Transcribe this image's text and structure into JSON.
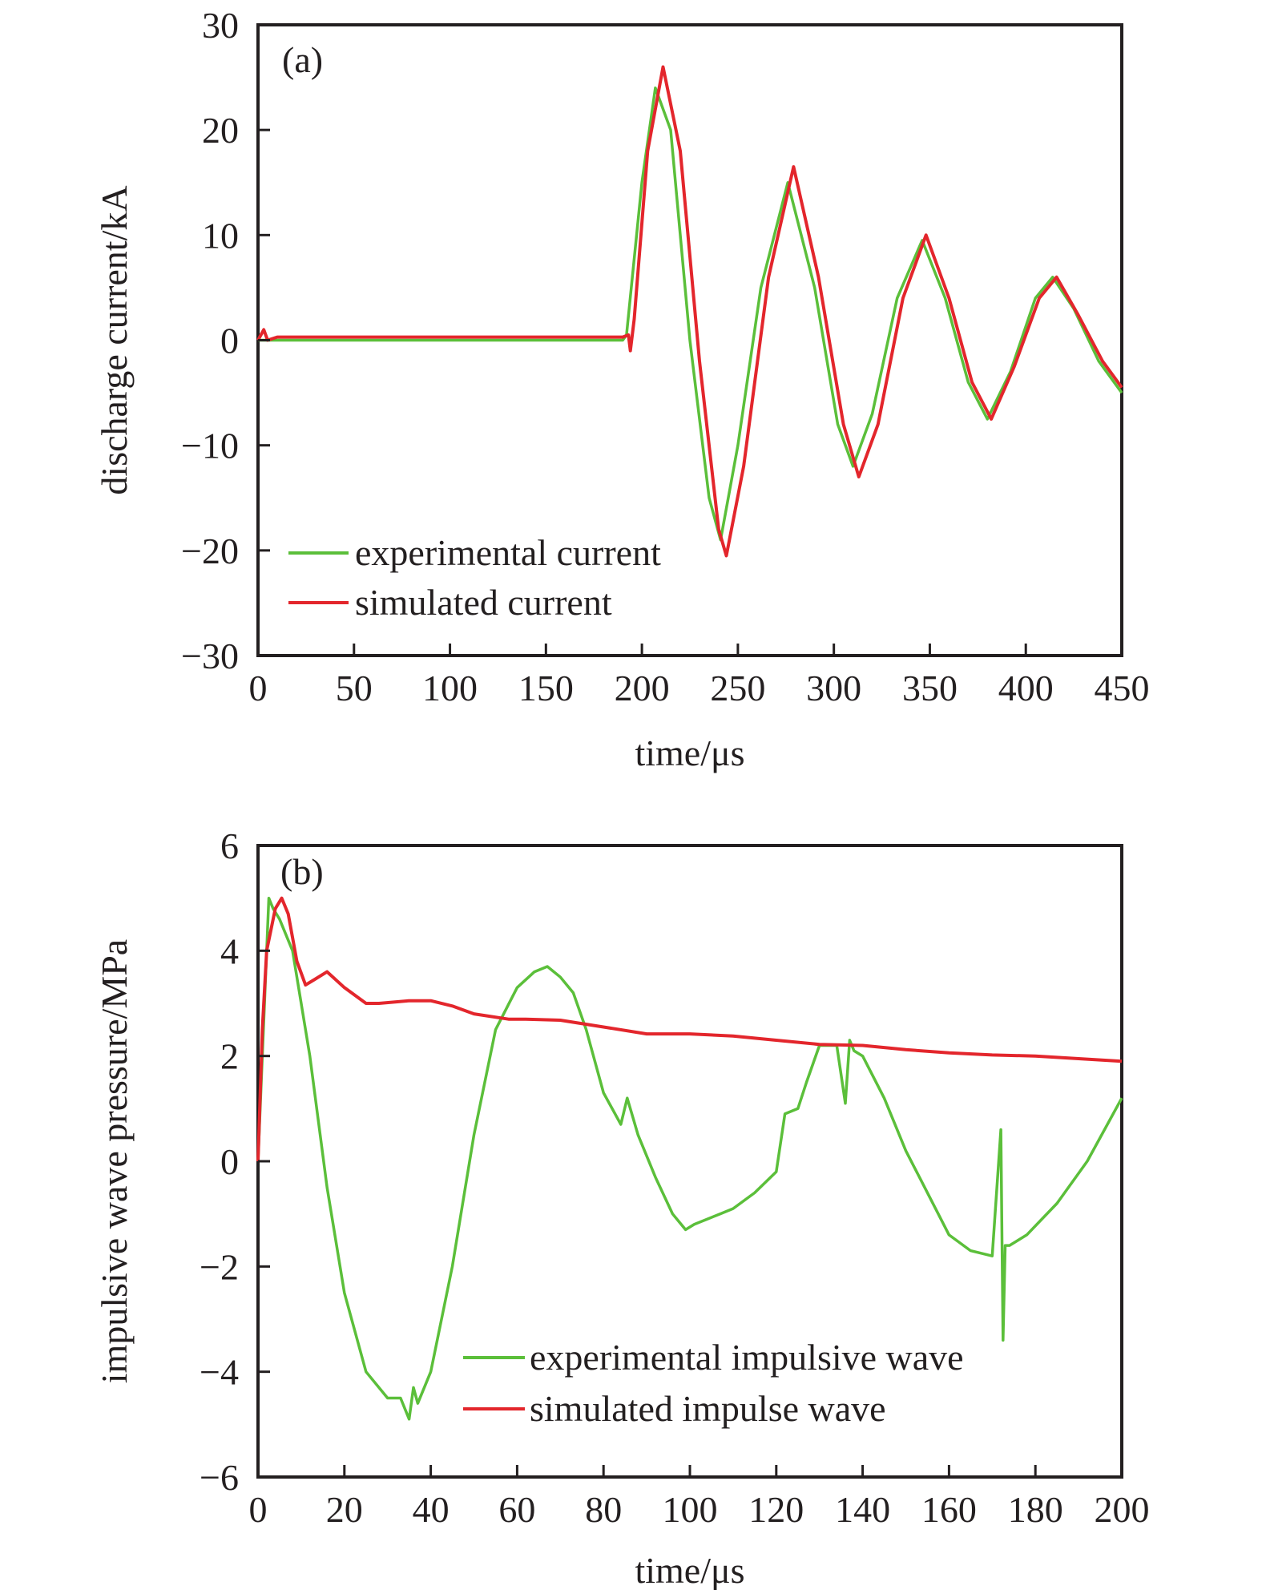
{
  "chart_data": [
    {
      "type": "line",
      "panel_label": "(a)",
      "title": "",
      "xlabel": "time/μs",
      "ylabel": "discharge current/kA",
      "xlim": [
        0,
        450
      ],
      "ylim": [
        -30,
        30
      ],
      "xticks": [
        0,
        50,
        100,
        150,
        200,
        250,
        300,
        350,
        400,
        450
      ],
      "xtick_labels": [
        "0",
        "50",
        "100",
        "150",
        "200",
        "250",
        "300",
        "350",
        "400",
        "450"
      ],
      "yticks": [
        -30,
        -20,
        -10,
        0,
        10,
        20,
        30
      ],
      "ytick_labels": [
        "−30",
        "−20",
        "−10",
        "0",
        "10",
        "20",
        "30"
      ],
      "grid": false,
      "legend_position": "bottom-left",
      "series": [
        {
          "name": "experimental current",
          "color": "#5bbf3a",
          "x": [
            0,
            190,
            192,
            200,
            207,
            215,
            225,
            235,
            241,
            250,
            262,
            276,
            290,
            302,
            310,
            320,
            333,
            346,
            358,
            370,
            380,
            392,
            405,
            414,
            425,
            438,
            450
          ],
          "y": [
            0,
            0,
            0.5,
            15,
            24,
            20,
            0,
            -15,
            -19,
            -10,
            5,
            15,
            5,
            -8,
            -12,
            -7,
            4,
            9.5,
            4,
            -4,
            -7.5,
            -3,
            4,
            6,
            3,
            -2,
            -5
          ]
        },
        {
          "name": "simulated current",
          "color": "#e3262c",
          "x": [
            0,
            3,
            5,
            10,
            190,
            193,
            194,
            196,
            203,
            211,
            220,
            230,
            240,
            244,
            253,
            266,
            279,
            292,
            305,
            313,
            323,
            336,
            348,
            360,
            372,
            382,
            394,
            407,
            416,
            427,
            440,
            450
          ],
          "y": [
            0,
            1,
            0,
            0.3,
            0.3,
            0.5,
            -1,
            2,
            18,
            26,
            18,
            -2,
            -18,
            -20.5,
            -12,
            6,
            16.5,
            6,
            -8,
            -13,
            -8,
            4,
            10,
            4,
            -4,
            -7.5,
            -2.5,
            4,
            6,
            2.5,
            -2,
            -4.5
          ]
        }
      ]
    },
    {
      "type": "line",
      "panel_label": "(b)",
      "title": "",
      "xlabel": "time/μs",
      "ylabel": "impulsive wave pressure/MPa",
      "xlim": [
        0,
        200
      ],
      "ylim": [
        -6,
        6
      ],
      "xticks": [
        0,
        20,
        40,
        60,
        80,
        100,
        120,
        140,
        160,
        180,
        200
      ],
      "xtick_labels": [
        "0",
        "20",
        "40",
        "60",
        "80",
        "100",
        "120",
        "140",
        "160",
        "180",
        "200"
      ],
      "yticks": [
        -6,
        -4,
        -2,
        0,
        2,
        4,
        6
      ],
      "ytick_labels": [
        "−6",
        "−4",
        "−2",
        "0",
        "2",
        "4",
        "6"
      ],
      "grid": false,
      "legend_position": "bottom-center",
      "series": [
        {
          "name": "experimental impulsive wave",
          "color": "#5bbf3a",
          "x": [
            0,
            1,
            2.5,
            3.5,
            5,
            8,
            12,
            16,
            20,
            25,
            30,
            33,
            35,
            36,
            37,
            40,
            45,
            50,
            55,
            60,
            64,
            67,
            70,
            73,
            76,
            80,
            84,
            85.5,
            88,
            92,
            96,
            99,
            101,
            104,
            107,
            110,
            115,
            120,
            122,
            125,
            127,
            130,
            134,
            136,
            137,
            138,
            140,
            145,
            150,
            155,
            160,
            165,
            170,
            172,
            172.5,
            173,
            174,
            178,
            185,
            192,
            200
          ],
          "y": [
            0,
            2,
            5,
            4.8,
            4.6,
            4,
            2,
            -0.5,
            -2.5,
            -4,
            -4.5,
            -4.5,
            -4.9,
            -4.3,
            -4.6,
            -4,
            -2,
            0.5,
            2.5,
            3.3,
            3.6,
            3.7,
            3.5,
            3.2,
            2.5,
            1.3,
            0.7,
            1.2,
            0.5,
            -0.3,
            -1,
            -1.3,
            -1.2,
            -1.1,
            -1,
            -0.9,
            -0.6,
            -0.2,
            0.9,
            1,
            1.5,
            2.2,
            2.2,
            1.1,
            2.3,
            2.1,
            2,
            1.2,
            0.2,
            -0.6,
            -1.4,
            -1.7,
            -1.8,
            0.6,
            -3.4,
            -1.6,
            -1.6,
            -1.4,
            -0.8,
            0,
            1.2
          ]
        },
        {
          "name": "simulated impulse wave",
          "color": "#e3262c",
          "x": [
            0,
            1,
            2,
            4,
            5.5,
            7,
            9,
            11,
            13,
            16,
            20,
            25,
            28,
            35,
            40,
            45,
            50,
            58,
            62,
            70,
            80,
            90,
            100,
            110,
            120,
            130,
            140,
            150,
            160,
            170,
            180,
            190,
            200
          ],
          "y": [
            0,
            2.5,
            4,
            4.8,
            5,
            4.7,
            3.8,
            3.35,
            3.45,
            3.6,
            3.3,
            3,
            3,
            3.05,
            3.05,
            2.95,
            2.8,
            2.7,
            2.7,
            2.68,
            2.55,
            2.42,
            2.42,
            2.38,
            2.3,
            2.22,
            2.2,
            2.12,
            2.06,
            2.02,
            2,
            1.95,
            1.9
          ]
        }
      ]
    }
  ]
}
